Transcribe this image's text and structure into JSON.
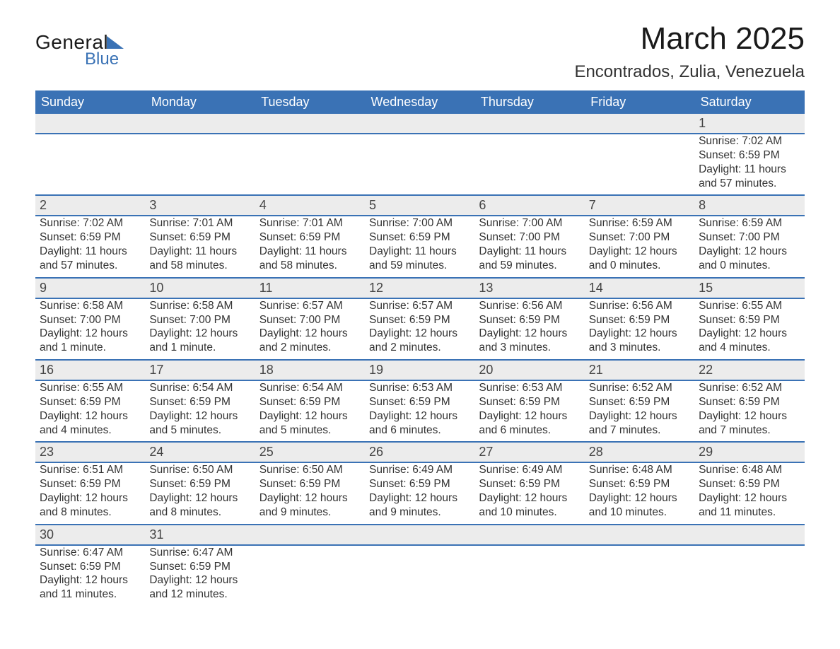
{
  "brand": {
    "part1": "General",
    "part2": "Blue"
  },
  "title": {
    "month": "March 2025",
    "location": "Encontrados, Zulia, Venezuela"
  },
  "colors": {
    "header_bg": "#3a72b5",
    "header_text": "#ffffff",
    "daynum_bg": "#ececec",
    "row_divider": "#3a72b5",
    "body_text": "#333333",
    "page_bg": "#ffffff"
  },
  "typography": {
    "month_fontsize": 44,
    "location_fontsize": 24,
    "dayheader_fontsize": 18,
    "cell_fontsize": 15.5,
    "font_family": "Arial"
  },
  "calendar": {
    "type": "table",
    "day_headers": [
      "Sunday",
      "Monday",
      "Tuesday",
      "Wednesday",
      "Thursday",
      "Friday",
      "Saturday"
    ],
    "weeks": [
      [
        null,
        null,
        null,
        null,
        null,
        null,
        {
          "d": "1",
          "sunrise": "Sunrise: 7:02 AM",
          "sunset": "Sunset: 6:59 PM",
          "day1": "Daylight: 11 hours",
          "day2": "and 57 minutes."
        }
      ],
      [
        {
          "d": "2",
          "sunrise": "Sunrise: 7:02 AM",
          "sunset": "Sunset: 6:59 PM",
          "day1": "Daylight: 11 hours",
          "day2": "and 57 minutes."
        },
        {
          "d": "3",
          "sunrise": "Sunrise: 7:01 AM",
          "sunset": "Sunset: 6:59 PM",
          "day1": "Daylight: 11 hours",
          "day2": "and 58 minutes."
        },
        {
          "d": "4",
          "sunrise": "Sunrise: 7:01 AM",
          "sunset": "Sunset: 6:59 PM",
          "day1": "Daylight: 11 hours",
          "day2": "and 58 minutes."
        },
        {
          "d": "5",
          "sunrise": "Sunrise: 7:00 AM",
          "sunset": "Sunset: 6:59 PM",
          "day1": "Daylight: 11 hours",
          "day2": "and 59 minutes."
        },
        {
          "d": "6",
          "sunrise": "Sunrise: 7:00 AM",
          "sunset": "Sunset: 7:00 PM",
          "day1": "Daylight: 11 hours",
          "day2": "and 59 minutes."
        },
        {
          "d": "7",
          "sunrise": "Sunrise: 6:59 AM",
          "sunset": "Sunset: 7:00 PM",
          "day1": "Daylight: 12 hours",
          "day2": "and 0 minutes."
        },
        {
          "d": "8",
          "sunrise": "Sunrise: 6:59 AM",
          "sunset": "Sunset: 7:00 PM",
          "day1": "Daylight: 12 hours",
          "day2": "and 0 minutes."
        }
      ],
      [
        {
          "d": "9",
          "sunrise": "Sunrise: 6:58 AM",
          "sunset": "Sunset: 7:00 PM",
          "day1": "Daylight: 12 hours",
          "day2": "and 1 minute."
        },
        {
          "d": "10",
          "sunrise": "Sunrise: 6:58 AM",
          "sunset": "Sunset: 7:00 PM",
          "day1": "Daylight: 12 hours",
          "day2": "and 1 minute."
        },
        {
          "d": "11",
          "sunrise": "Sunrise: 6:57 AM",
          "sunset": "Sunset: 7:00 PM",
          "day1": "Daylight: 12 hours",
          "day2": "and 2 minutes."
        },
        {
          "d": "12",
          "sunrise": "Sunrise: 6:57 AM",
          "sunset": "Sunset: 6:59 PM",
          "day1": "Daylight: 12 hours",
          "day2": "and 2 minutes."
        },
        {
          "d": "13",
          "sunrise": "Sunrise: 6:56 AM",
          "sunset": "Sunset: 6:59 PM",
          "day1": "Daylight: 12 hours",
          "day2": "and 3 minutes."
        },
        {
          "d": "14",
          "sunrise": "Sunrise: 6:56 AM",
          "sunset": "Sunset: 6:59 PM",
          "day1": "Daylight: 12 hours",
          "day2": "and 3 minutes."
        },
        {
          "d": "15",
          "sunrise": "Sunrise: 6:55 AM",
          "sunset": "Sunset: 6:59 PM",
          "day1": "Daylight: 12 hours",
          "day2": "and 4 minutes."
        }
      ],
      [
        {
          "d": "16",
          "sunrise": "Sunrise: 6:55 AM",
          "sunset": "Sunset: 6:59 PM",
          "day1": "Daylight: 12 hours",
          "day2": "and 4 minutes."
        },
        {
          "d": "17",
          "sunrise": "Sunrise: 6:54 AM",
          "sunset": "Sunset: 6:59 PM",
          "day1": "Daylight: 12 hours",
          "day2": "and 5 minutes."
        },
        {
          "d": "18",
          "sunrise": "Sunrise: 6:54 AM",
          "sunset": "Sunset: 6:59 PM",
          "day1": "Daylight: 12 hours",
          "day2": "and 5 minutes."
        },
        {
          "d": "19",
          "sunrise": "Sunrise: 6:53 AM",
          "sunset": "Sunset: 6:59 PM",
          "day1": "Daylight: 12 hours",
          "day2": "and 6 minutes."
        },
        {
          "d": "20",
          "sunrise": "Sunrise: 6:53 AM",
          "sunset": "Sunset: 6:59 PM",
          "day1": "Daylight: 12 hours",
          "day2": "and 6 minutes."
        },
        {
          "d": "21",
          "sunrise": "Sunrise: 6:52 AM",
          "sunset": "Sunset: 6:59 PM",
          "day1": "Daylight: 12 hours",
          "day2": "and 7 minutes."
        },
        {
          "d": "22",
          "sunrise": "Sunrise: 6:52 AM",
          "sunset": "Sunset: 6:59 PM",
          "day1": "Daylight: 12 hours",
          "day2": "and 7 minutes."
        }
      ],
      [
        {
          "d": "23",
          "sunrise": "Sunrise: 6:51 AM",
          "sunset": "Sunset: 6:59 PM",
          "day1": "Daylight: 12 hours",
          "day2": "and 8 minutes."
        },
        {
          "d": "24",
          "sunrise": "Sunrise: 6:50 AM",
          "sunset": "Sunset: 6:59 PM",
          "day1": "Daylight: 12 hours",
          "day2": "and 8 minutes."
        },
        {
          "d": "25",
          "sunrise": "Sunrise: 6:50 AM",
          "sunset": "Sunset: 6:59 PM",
          "day1": "Daylight: 12 hours",
          "day2": "and 9 minutes."
        },
        {
          "d": "26",
          "sunrise": "Sunrise: 6:49 AM",
          "sunset": "Sunset: 6:59 PM",
          "day1": "Daylight: 12 hours",
          "day2": "and 9 minutes."
        },
        {
          "d": "27",
          "sunrise": "Sunrise: 6:49 AM",
          "sunset": "Sunset: 6:59 PM",
          "day1": "Daylight: 12 hours",
          "day2": "and 10 minutes."
        },
        {
          "d": "28",
          "sunrise": "Sunrise: 6:48 AM",
          "sunset": "Sunset: 6:59 PM",
          "day1": "Daylight: 12 hours",
          "day2": "and 10 minutes."
        },
        {
          "d": "29",
          "sunrise": "Sunrise: 6:48 AM",
          "sunset": "Sunset: 6:59 PM",
          "day1": "Daylight: 12 hours",
          "day2": "and 11 minutes."
        }
      ],
      [
        {
          "d": "30",
          "sunrise": "Sunrise: 6:47 AM",
          "sunset": "Sunset: 6:59 PM",
          "day1": "Daylight: 12 hours",
          "day2": "and 11 minutes."
        },
        {
          "d": "31",
          "sunrise": "Sunrise: 6:47 AM",
          "sunset": "Sunset: 6:59 PM",
          "day1": "Daylight: 12 hours",
          "day2": "and 12 minutes."
        },
        null,
        null,
        null,
        null,
        null
      ]
    ]
  }
}
